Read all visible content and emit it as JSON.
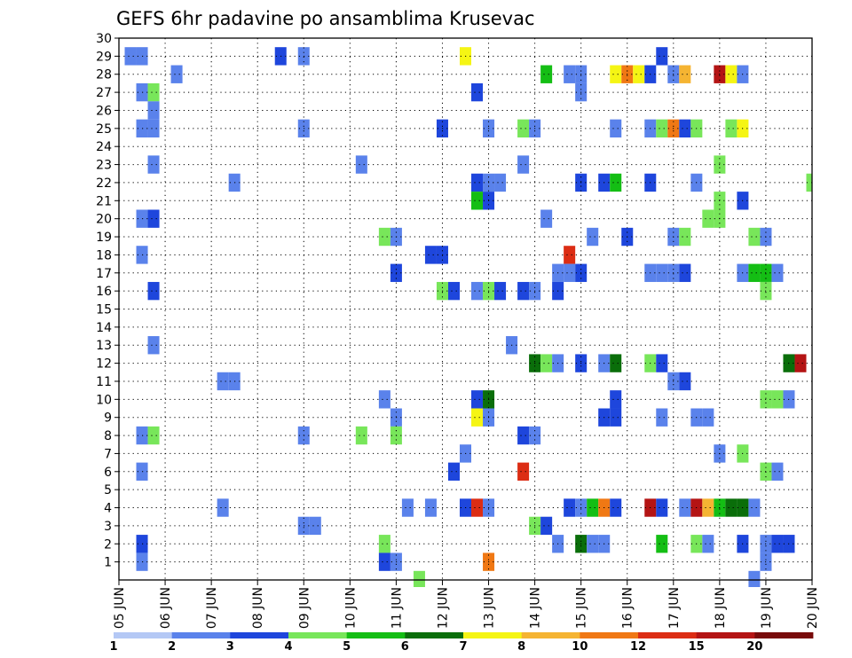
{
  "chart_data": {
    "type": "heatmap",
    "title": "GEFS 6hr padavine po ansamblima Krusevac",
    "xlabel": "",
    "ylabel": "",
    "x_ticks": [
      "05 JUN",
      "06 JUN",
      "07 JUN",
      "08 JUN",
      "09 JUN",
      "10 JUN",
      "11 JUN",
      "12 JUN",
      "13 JUN",
      "14 JUN",
      "15 JUN",
      "16 JUN",
      "17 JUN",
      "18 JUN",
      "19 JUN",
      "20 JUN"
    ],
    "y_ticks": [
      "1",
      "2",
      "3",
      "4",
      "5",
      "6",
      "7",
      "8",
      "9",
      "10",
      "11",
      "12",
      "13",
      "14",
      "15",
      "16",
      "17",
      "18",
      "19",
      "20",
      "21",
      "22",
      "23",
      "24",
      "25",
      "26",
      "27",
      "28",
      "29",
      "30"
    ],
    "xlim": [
      0,
      60
    ],
    "ylim": [
      0,
      30
    ],
    "x_unit": "6-hour step from 05 JUN 00Z",
    "grid": true,
    "legend": {
      "position": "bottom",
      "labels": [
        "1",
        "2",
        "3",
        "4",
        "5",
        "6",
        "7",
        "8",
        "10",
        "12",
        "15",
        "20"
      ],
      "colors": [
        "#b4c8f5",
        "#5a82eb",
        "#1e46dc",
        "#78e65a",
        "#14be14",
        "#0a6e0a",
        "#f5f514",
        "#f5b432",
        "#f07814",
        "#dc2d14",
        "#b41414",
        "#780a0a"
      ]
    },
    "cells": [
      [
        1,
        29,
        1
      ],
      [
        2,
        29,
        1
      ],
      [
        14,
        29,
        2
      ],
      [
        16,
        29,
        1
      ],
      [
        30,
        29,
        6
      ],
      [
        47,
        29,
        2
      ],
      [
        5,
        28,
        1
      ],
      [
        37,
        28,
        4
      ],
      [
        39,
        28,
        1
      ],
      [
        40,
        28,
        1
      ],
      [
        43,
        28,
        6
      ],
      [
        44,
        28,
        8
      ],
      [
        45,
        28,
        6
      ],
      [
        46,
        28,
        2
      ],
      [
        48,
        28,
        1
      ],
      [
        49,
        28,
        7
      ],
      [
        52,
        28,
        10
      ],
      [
        53,
        28,
        6
      ],
      [
        54,
        28,
        1
      ],
      [
        2,
        27,
        1
      ],
      [
        3,
        27,
        3
      ],
      [
        31,
        27,
        2
      ],
      [
        40,
        27,
        1
      ],
      [
        3,
        26,
        1
      ],
      [
        2,
        25,
        1
      ],
      [
        3,
        25,
        1
      ],
      [
        16,
        25,
        1
      ],
      [
        28,
        25,
        2
      ],
      [
        32,
        25,
        1
      ],
      [
        35,
        25,
        3
      ],
      [
        36,
        25,
        1
      ],
      [
        43,
        25,
        1
      ],
      [
        46,
        25,
        1
      ],
      [
        47,
        25,
        3
      ],
      [
        48,
        25,
        8
      ],
      [
        49,
        25,
        2
      ],
      [
        50,
        25,
        3
      ],
      [
        53,
        25,
        3
      ],
      [
        54,
        25,
        6
      ],
      [
        3,
        23,
        1
      ],
      [
        21,
        23,
        1
      ],
      [
        35,
        23,
        1
      ],
      [
        52,
        23,
        3
      ],
      [
        10,
        22,
        1
      ],
      [
        31,
        22,
        2
      ],
      [
        32,
        22,
        1
      ],
      [
        33,
        22,
        1
      ],
      [
        40,
        22,
        2
      ],
      [
        42,
        22,
        2
      ],
      [
        43,
        22,
        4
      ],
      [
        46,
        22,
        2
      ],
      [
        50,
        22,
        1
      ],
      [
        60,
        22,
        3
      ],
      [
        31,
        21,
        4
      ],
      [
        32,
        21,
        2
      ],
      [
        52,
        21,
        3
      ],
      [
        54,
        21,
        2
      ],
      [
        2,
        20,
        1
      ],
      [
        3,
        20,
        2
      ],
      [
        37,
        20,
        1
      ],
      [
        51,
        20,
        3
      ],
      [
        52,
        20,
        3
      ],
      [
        23,
        19,
        3
      ],
      [
        24,
        19,
        1
      ],
      [
        41,
        19,
        1
      ],
      [
        44,
        19,
        2
      ],
      [
        48,
        19,
        1
      ],
      [
        49,
        19,
        3
      ],
      [
        55,
        19,
        3
      ],
      [
        56,
        19,
        1
      ],
      [
        2,
        18,
        1
      ],
      [
        27,
        18,
        2
      ],
      [
        28,
        18,
        2
      ],
      [
        39,
        18,
        9
      ],
      [
        24,
        17,
        2
      ],
      [
        38,
        17,
        1
      ],
      [
        39,
        17,
        1
      ],
      [
        40,
        17,
        2
      ],
      [
        46,
        17,
        1
      ],
      [
        47,
        17,
        1
      ],
      [
        48,
        17,
        1
      ],
      [
        49,
        17,
        2
      ],
      [
        54,
        17,
        1
      ],
      [
        55,
        17,
        4
      ],
      [
        56,
        17,
        4
      ],
      [
        57,
        17,
        1
      ],
      [
        3,
        16,
        2
      ],
      [
        28,
        16,
        3
      ],
      [
        29,
        16,
        2
      ],
      [
        31,
        16,
        1
      ],
      [
        32,
        16,
        3
      ],
      [
        33,
        16,
        2
      ],
      [
        35,
        16,
        2
      ],
      [
        36,
        16,
        1
      ],
      [
        38,
        16,
        2
      ],
      [
        56,
        16,
        3
      ],
      [
        3,
        13,
        1
      ],
      [
        34,
        13,
        1
      ],
      [
        36,
        12,
        5
      ],
      [
        37,
        12,
        3
      ],
      [
        38,
        12,
        1
      ],
      [
        40,
        12,
        2
      ],
      [
        42,
        12,
        1
      ],
      [
        43,
        12,
        5
      ],
      [
        46,
        12,
        3
      ],
      [
        47,
        12,
        2
      ],
      [
        58,
        12,
        5
      ],
      [
        59,
        12,
        10
      ],
      [
        9,
        11,
        1
      ],
      [
        10,
        11,
        1
      ],
      [
        48,
        11,
        1
      ],
      [
        49,
        11,
        2
      ],
      [
        23,
        10,
        1
      ],
      [
        31,
        10,
        2
      ],
      [
        32,
        10,
        5
      ],
      [
        43,
        10,
        2
      ],
      [
        56,
        10,
        3
      ],
      [
        57,
        10,
        3
      ],
      [
        58,
        10,
        1
      ],
      [
        24,
        9,
        1
      ],
      [
        31,
        9,
        6
      ],
      [
        32,
        9,
        1
      ],
      [
        42,
        9,
        2
      ],
      [
        43,
        9,
        2
      ],
      [
        47,
        9,
        1
      ],
      [
        50,
        9,
        1
      ],
      [
        51,
        9,
        1
      ],
      [
        2,
        8,
        1
      ],
      [
        3,
        8,
        3
      ],
      [
        16,
        8,
        1
      ],
      [
        21,
        8,
        3
      ],
      [
        24,
        8,
        3
      ],
      [
        35,
        8,
        2
      ],
      [
        36,
        8,
        1
      ],
      [
        30,
        7,
        1
      ],
      [
        52,
        7,
        1
      ],
      [
        54,
        7,
        3
      ],
      [
        2,
        6,
        1
      ],
      [
        29,
        6,
        2
      ],
      [
        35,
        6,
        9
      ],
      [
        56,
        6,
        3
      ],
      [
        57,
        6,
        1
      ],
      [
        9,
        4,
        1
      ],
      [
        25,
        4,
        1
      ],
      [
        27,
        4,
        1
      ],
      [
        30,
        4,
        2
      ],
      [
        31,
        4,
        9
      ],
      [
        32,
        4,
        1
      ],
      [
        39,
        4,
        2
      ],
      [
        40,
        4,
        1
      ],
      [
        41,
        4,
        4
      ],
      [
        42,
        4,
        8
      ],
      [
        43,
        4,
        2
      ],
      [
        46,
        4,
        10
      ],
      [
        47,
        4,
        2
      ],
      [
        49,
        4,
        1
      ],
      [
        50,
        4,
        10
      ],
      [
        51,
        4,
        7
      ],
      [
        52,
        4,
        4
      ],
      [
        53,
        4,
        5
      ],
      [
        54,
        4,
        5
      ],
      [
        55,
        4,
        1
      ],
      [
        16,
        3,
        1
      ],
      [
        17,
        3,
        1
      ],
      [
        36,
        3,
        3
      ],
      [
        37,
        3,
        2
      ],
      [
        2,
        2,
        2
      ],
      [
        23,
        2,
        3
      ],
      [
        38,
        2,
        1
      ],
      [
        40,
        2,
        5
      ],
      [
        41,
        2,
        1
      ],
      [
        42,
        2,
        1
      ],
      [
        47,
        2,
        4
      ],
      [
        50,
        2,
        3
      ],
      [
        51,
        2,
        1
      ],
      [
        54,
        2,
        2
      ],
      [
        56,
        2,
        1
      ],
      [
        57,
        2,
        2
      ],
      [
        58,
        2,
        2
      ],
      [
        2,
        1,
        1
      ],
      [
        23,
        1,
        2
      ],
      [
        24,
        1,
        1
      ],
      [
        32,
        1,
        8
      ],
      [
        56,
        1,
        1
      ],
      [
        26,
        0,
        3
      ],
      [
        55,
        0,
        1
      ]
    ]
  }
}
